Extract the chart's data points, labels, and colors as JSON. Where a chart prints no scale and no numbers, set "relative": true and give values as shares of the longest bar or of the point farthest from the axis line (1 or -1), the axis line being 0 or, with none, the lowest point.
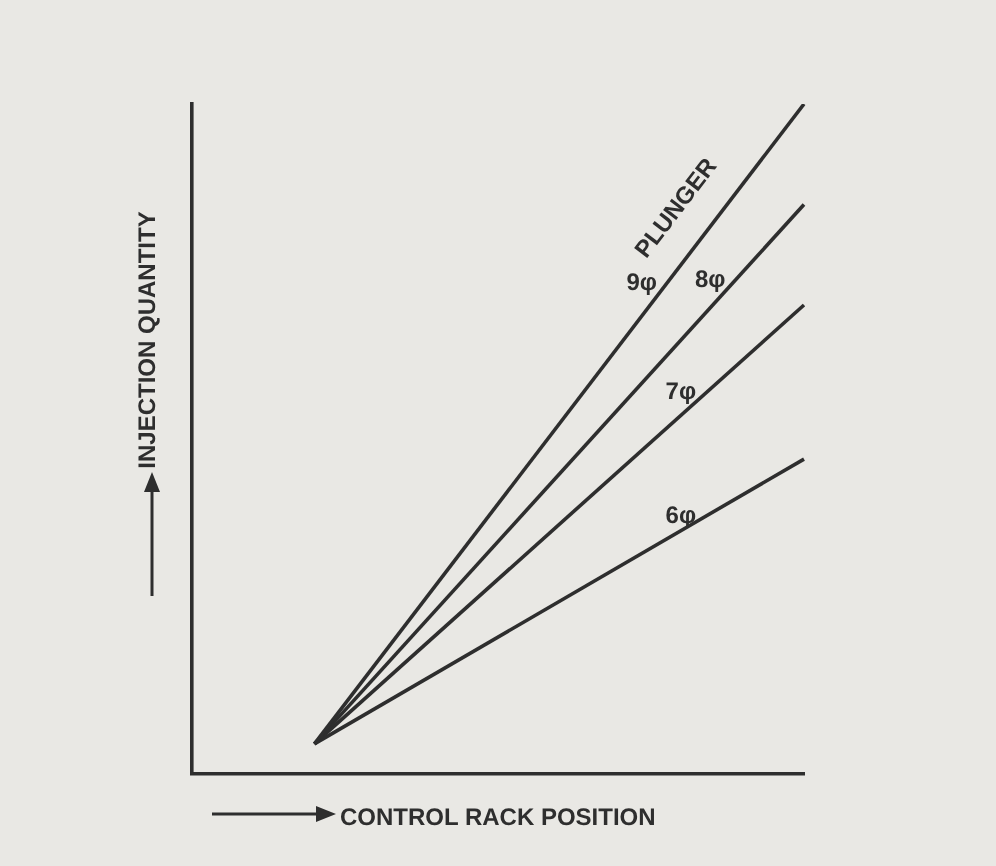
{
  "chart_data": {
    "type": "line",
    "relative": true,
    "xlabel": "CONTROL RACK POSITION",
    "ylabel": "INJECTION QUANTITY",
    "annotations": [
      "PLUNGER"
    ],
    "categories": [
      null,
      null,
      null,
      null,
      null,
      null
    ],
    "marker": "none",
    "legend": false,
    "tick_labels": false,
    "grid": false,
    "series": [
      {
        "name": "9φ",
        "color": "#2e2e2e",
        "values": [
          null,
          0.045,
          null,
          null,
          null,
          1
        ]
      },
      {
        "name": "8φ",
        "color": "#2e2e2e",
        "values": [
          null,
          0.045,
          null,
          null,
          null,
          0.85
        ]
      },
      {
        "name": "7φ",
        "color": "#2e2e2e",
        "values": [
          null,
          0.045,
          null,
          null,
          null,
          0.7
        ]
      },
      {
        "name": "6φ",
        "color": "#2e2e2e",
        "values": [
          null,
          0.045,
          null,
          null,
          null,
          0.47
        ]
      }
    ]
  }
}
